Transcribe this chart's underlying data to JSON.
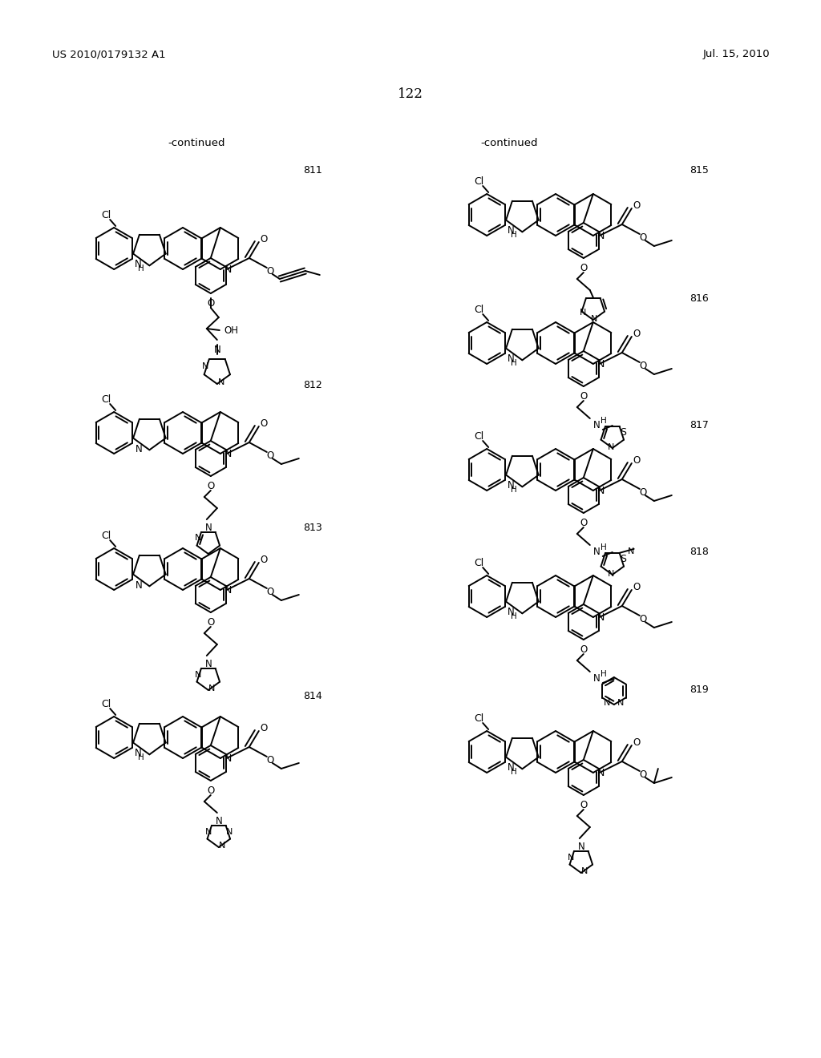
{
  "bg": "#ffffff",
  "header_left": "US 2010/0179132 A1",
  "header_right": "Jul. 15, 2010",
  "page_num": "122",
  "continued": "-continued",
  "compounds": [
    "811",
    "812",
    "813",
    "814",
    "815",
    "816",
    "817",
    "818",
    "819"
  ]
}
